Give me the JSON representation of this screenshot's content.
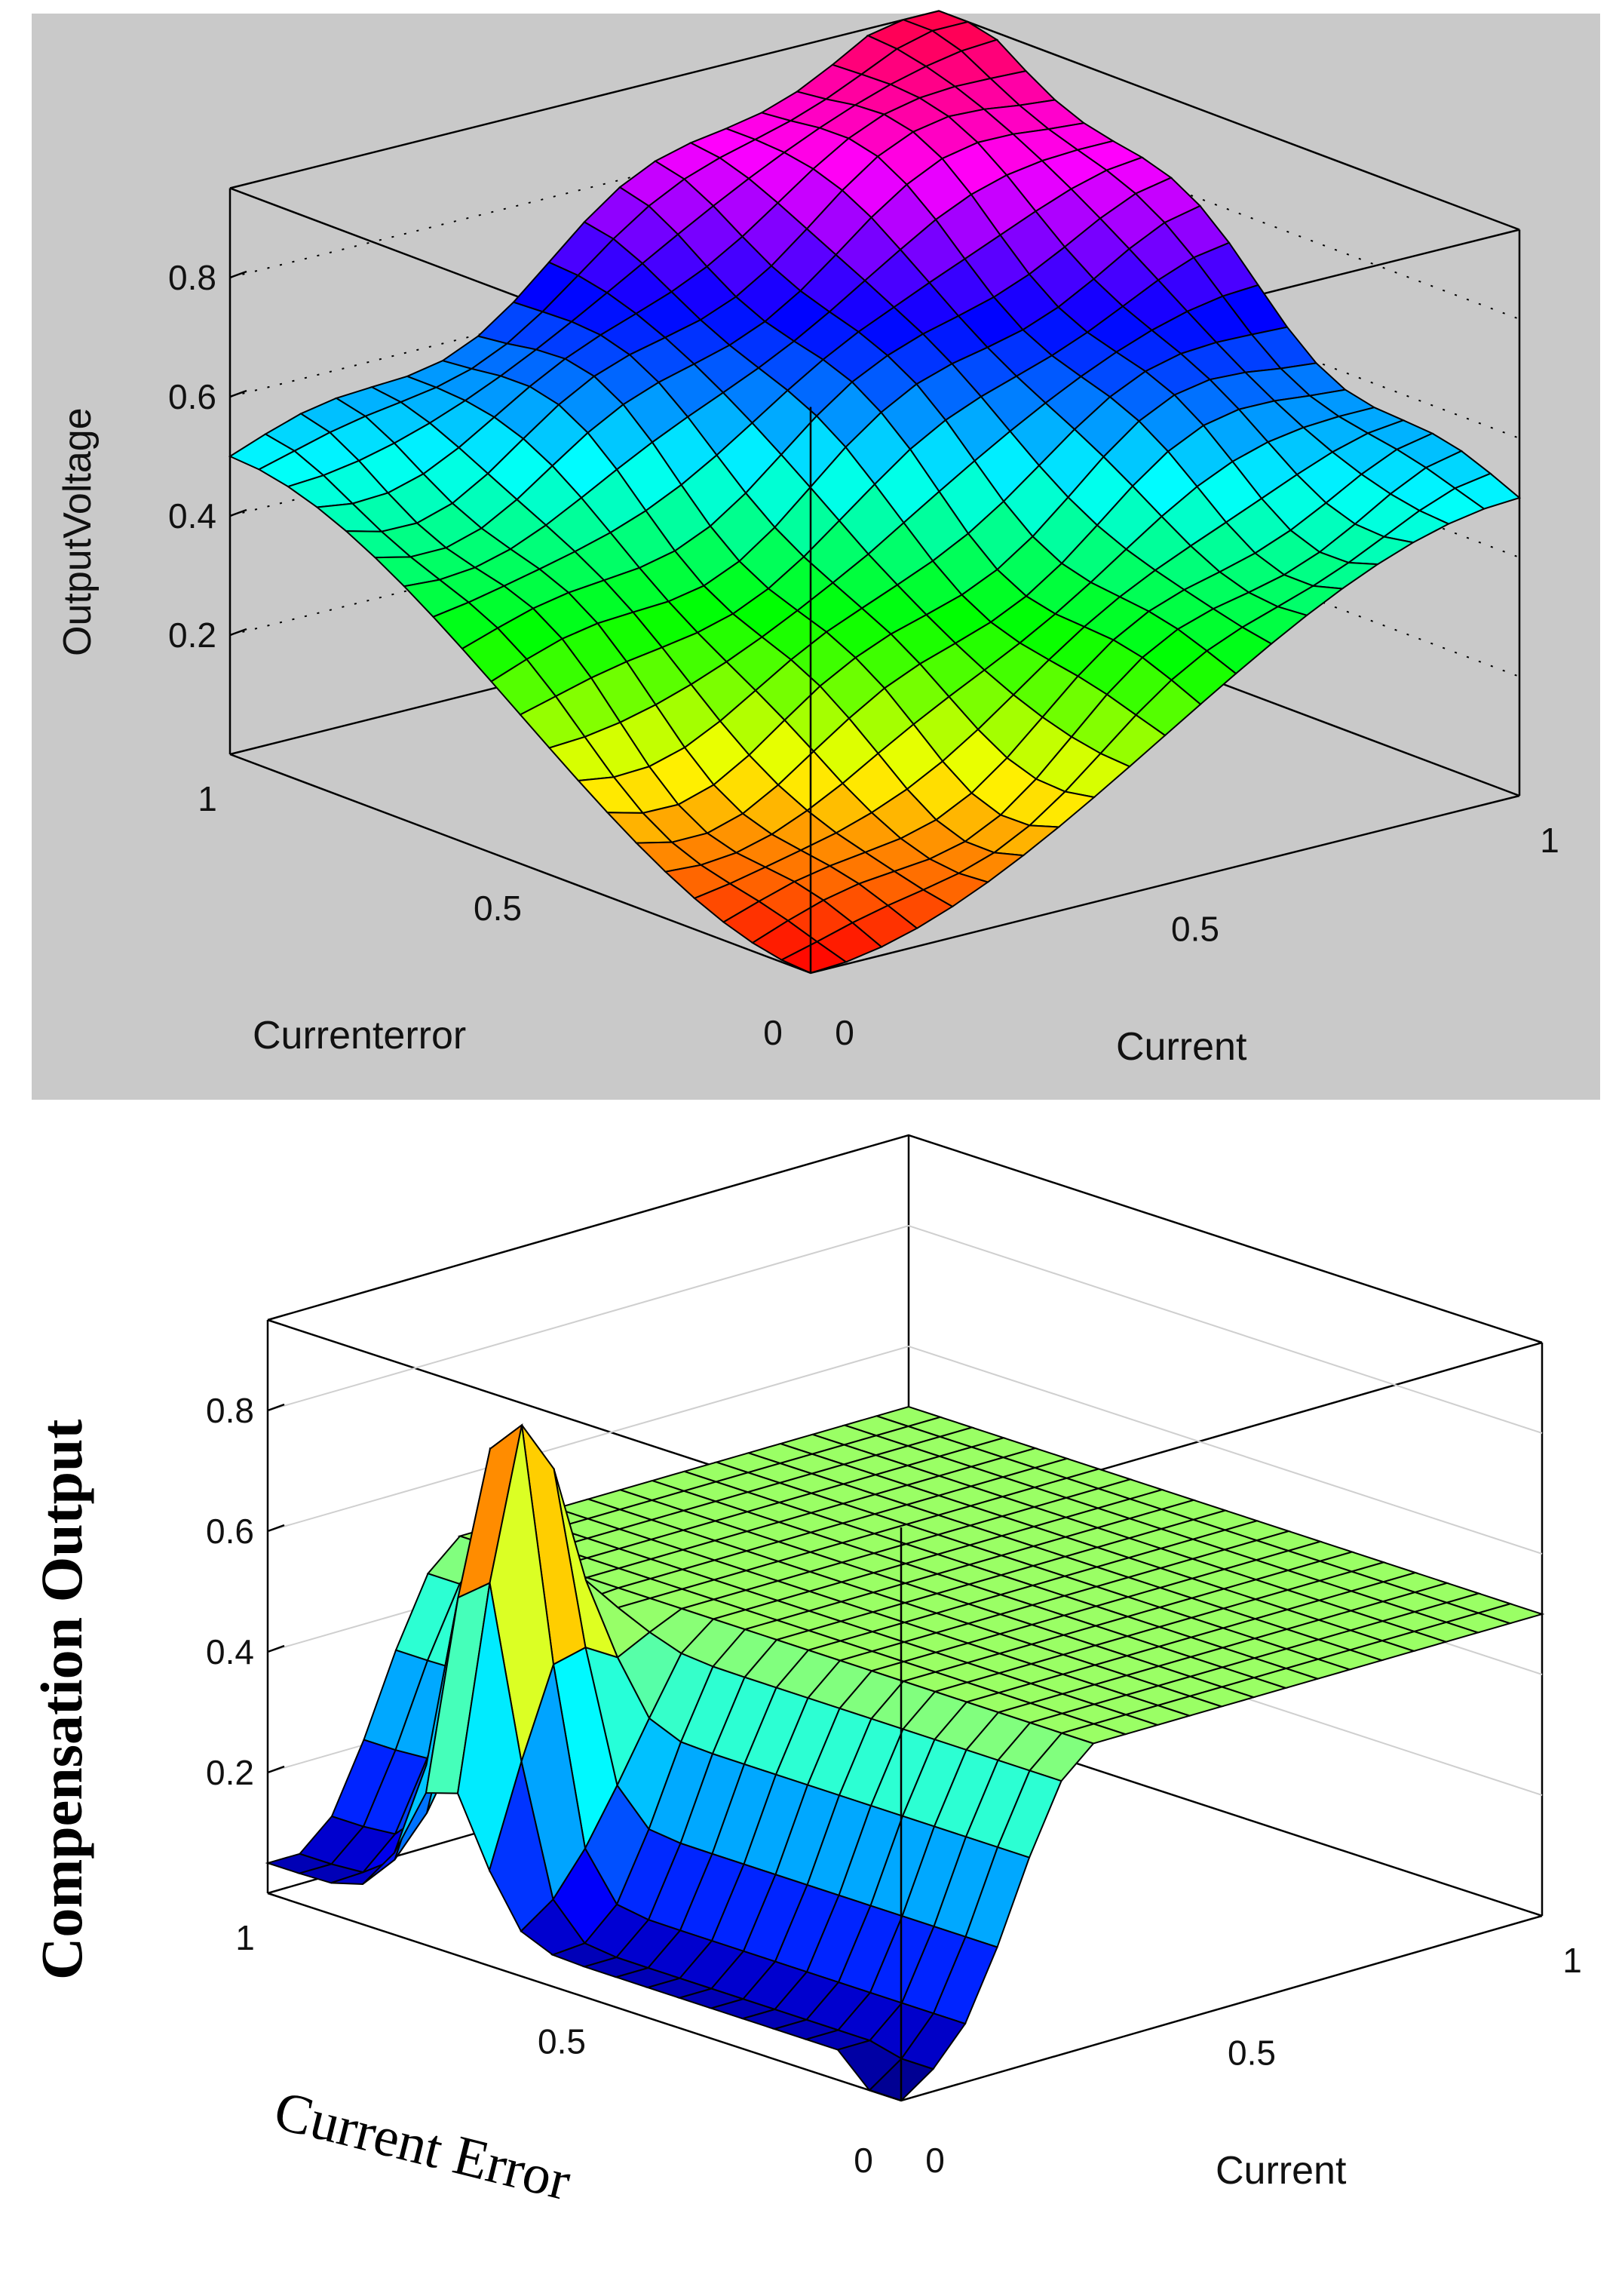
{
  "chart_data": [
    {
      "type": "surface3d",
      "colormap": "hsv",
      "background": "#c9c9c9",
      "xlabel": "Currenterror",
      "ylabel": "Current",
      "zlabel": "OutputVoltage",
      "x_range": [
        0,
        1
      ],
      "y_range": [
        0,
        1
      ],
      "z_range": [
        0,
        0.95
      ],
      "x_ticks": [
        "0",
        "0.5",
        "1"
      ],
      "y_ticks": [
        "0",
        "0.5",
        "1"
      ],
      "z_ticks": [
        "0.2",
        "0.4",
        "0.6",
        "0.8"
      ],
      "z_tick_values": [
        0.2,
        0.4,
        0.6,
        0.8
      ],
      "grid_points": 21,
      "surface": "z(0,0)=0; z(1,1)=0.95; z(1,0)=z(0,1)=0.5; smooth monotone dome (max of error and current, smoothed)"
    },
    {
      "type": "surface3d",
      "colormap": "jet",
      "background": "#ffffff",
      "xlabel": "Current Error",
      "ylabel": "Current",
      "zlabel": "Compensation Output",
      "x_range": [
        0,
        1
      ],
      "y_range": [
        0,
        1
      ],
      "z_range": [
        0,
        0.95
      ],
      "x_ticks": [
        "0",
        "0.5",
        "1"
      ],
      "y_ticks": [
        "0",
        "0.5",
        "1"
      ],
      "z_ticks": [
        "0.2",
        "0.4",
        "0.6",
        "0.8"
      ],
      "z_tick_values": [
        0.2,
        0.4,
        0.6,
        0.8
      ],
      "grid_points": 21,
      "surface": "flat plateau z=0.5 for large error/current; trough ~0.05 along low-current edge; spike ~0.85 near current error 0.7 at current 0.1"
    }
  ]
}
